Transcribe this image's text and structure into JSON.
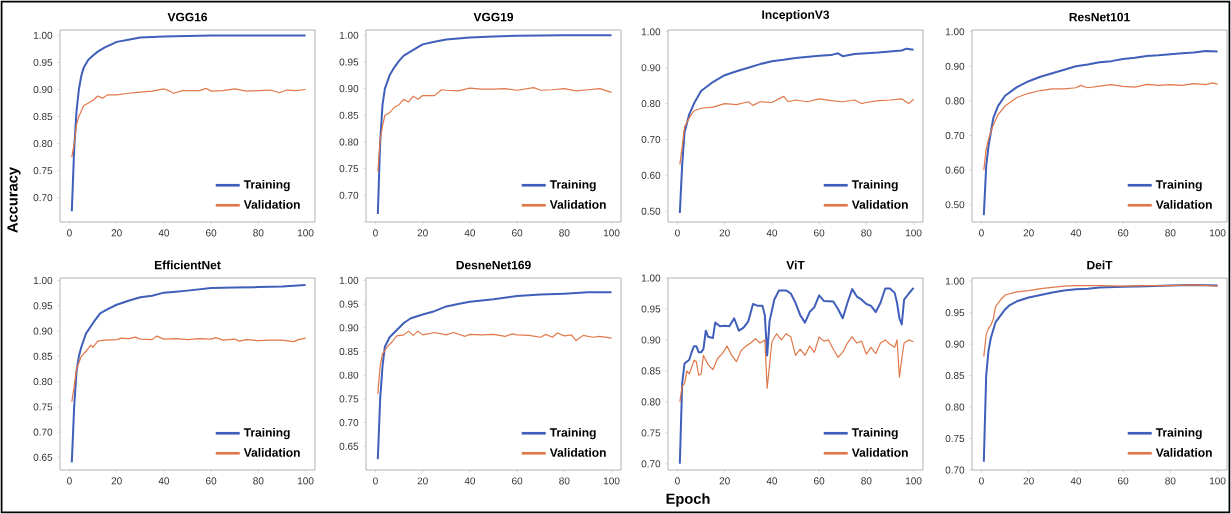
{
  "chart_data": [
    {
      "type": "line",
      "title": "VGG16",
      "ylabel": "Accuracy",
      "legend": "bottom right",
      "xlim": [
        -4,
        104
      ],
      "ylim": [
        0.655,
        1.01
      ],
      "xticks": [
        0,
        20,
        40,
        60,
        80,
        100
      ],
      "yticks": [
        {
          "value": 0.7,
          "label": "0.70"
        },
        {
          "value": 0.75,
          "label": "0.75"
        },
        {
          "value": 0.8,
          "label": "0.80"
        },
        {
          "value": 0.85,
          "label": "0.85"
        },
        {
          "value": 0.9,
          "label": "0.90"
        },
        {
          "value": 0.95,
          "label": "0.95"
        },
        {
          "value": 1.0,
          "label": "1.00"
        }
      ],
      "series": [
        {
          "name": "Training",
          "color": "#3f5fba",
          "x": [
            1,
            2,
            3,
            4,
            5,
            6,
            8,
            10,
            12,
            15,
            18,
            20,
            25,
            30,
            35,
            40,
            50,
            60,
            80,
            100
          ],
          "values": [
            0.675,
            0.79,
            0.86,
            0.9,
            0.925,
            0.94,
            0.955,
            0.963,
            0.97,
            0.978,
            0.984,
            0.988,
            0.992,
            0.996,
            0.997,
            0.998,
            0.999,
            1.0,
            1.0,
            1.0
          ]
        },
        {
          "name": "Validation",
          "color": "#e0784a",
          "x": [
            1,
            2,
            3,
            4,
            6,
            8,
            10,
            12,
            14,
            16,
            20,
            25,
            30,
            35,
            40,
            42,
            44,
            48,
            55,
            58,
            60,
            65,
            70,
            75,
            80,
            85,
            89,
            92,
            96,
            100
          ],
          "values": [
            0.775,
            0.8,
            0.835,
            0.85,
            0.87,
            0.875,
            0.88,
            0.888,
            0.884,
            0.89,
            0.89,
            0.893,
            0.895,
            0.897,
            0.901,
            0.898,
            0.893,
            0.898,
            0.898,
            0.902,
            0.897,
            0.898,
            0.901,
            0.897,
            0.898,
            0.899,
            0.894,
            0.899,
            0.898,
            0.9
          ]
        }
      ]
    },
    {
      "type": "line",
      "title": "VGG19",
      "legend": "bottom right",
      "xlim": [
        -4,
        104
      ],
      "ylim": [
        0.65,
        1.01
      ],
      "xticks": [
        0,
        20,
        40,
        60,
        80,
        100
      ],
      "yticks": [
        {
          "value": 0.65,
          "label": null
        },
        {
          "value": 0.7,
          "label": "0.70"
        },
        {
          "value": 0.75,
          "label": "0.75"
        },
        {
          "value": 0.8,
          "label": "0.80"
        },
        {
          "value": 0.85,
          "label": "0.85"
        },
        {
          "value": 0.9,
          "label": "0.90"
        },
        {
          "value": 0.95,
          "label": "0.95"
        },
        {
          "value": 1.0,
          "label": "1.00"
        }
      ],
      "series": [
        {
          "name": "Training",
          "color": "#3f5fba",
          "x": [
            1,
            2,
            3,
            4,
            6,
            8,
            10,
            12,
            15,
            18,
            20,
            25,
            30,
            40,
            50,
            60,
            80,
            100
          ],
          "values": [
            0.665,
            0.8,
            0.87,
            0.9,
            0.925,
            0.94,
            0.952,
            0.962,
            0.97,
            0.978,
            0.983,
            0.988,
            0.992,
            0.996,
            0.998,
            0.999,
            1.0,
            1.0
          ]
        },
        {
          "name": "Validation",
          "color": "#e0784a",
          "x": [
            1,
            2,
            3,
            4,
            6,
            8,
            10,
            12,
            14,
            16,
            18,
            20,
            25,
            28,
            30,
            35,
            40,
            45,
            50,
            55,
            60,
            67,
            70,
            75,
            80,
            85,
            90,
            95,
            100
          ],
          "values": [
            0.745,
            0.805,
            0.83,
            0.85,
            0.855,
            0.865,
            0.87,
            0.88,
            0.875,
            0.886,
            0.88,
            0.887,
            0.887,
            0.898,
            0.897,
            0.896,
            0.901,
            0.899,
            0.899,
            0.9,
            0.897,
            0.902,
            0.897,
            0.898,
            0.9,
            0.896,
            0.898,
            0.9,
            0.893
          ]
        }
      ]
    },
    {
      "type": "line",
      "title": "InceptionV3",
      "legend": "bottom right",
      "xlim": [
        -4,
        104
      ],
      "ylim": [
        0.47,
        1.005
      ],
      "xticks": [
        0,
        20,
        40,
        60,
        80,
        100
      ],
      "yticks": [
        {
          "value": 0.5,
          "label": "0.50"
        },
        {
          "value": 0.6,
          "label": "0.60"
        },
        {
          "value": 0.7,
          "label": "0.70"
        },
        {
          "value": 0.8,
          "label": "0.80"
        },
        {
          "value": 0.9,
          "label": "0.90"
        },
        {
          "value": 1.0,
          "label": "1.00"
        }
      ],
      "series": [
        {
          "name": "Training",
          "color": "#3f5fba",
          "x": [
            1,
            2,
            3,
            5,
            7,
            10,
            15,
            20,
            25,
            30,
            35,
            40,
            45,
            50,
            60,
            65,
            68,
            70,
            75,
            80,
            85,
            90,
            95,
            97,
            100
          ],
          "values": [
            0.495,
            0.63,
            0.72,
            0.77,
            0.8,
            0.835,
            0.86,
            0.879,
            0.89,
            0.9,
            0.91,
            0.918,
            0.922,
            0.927,
            0.933,
            0.935,
            0.94,
            0.932,
            0.938,
            0.94,
            0.942,
            0.945,
            0.948,
            0.953,
            0.95
          ]
        },
        {
          "name": "Validation",
          "color": "#e0784a",
          "x": [
            1,
            2,
            3,
            5,
            7,
            10,
            15,
            20,
            25,
            30,
            32,
            35,
            40,
            45,
            47,
            50,
            55,
            60,
            65,
            70,
            75,
            78,
            80,
            85,
            90,
            95,
            98,
            100
          ],
          "values": [
            0.63,
            0.68,
            0.735,
            0.76,
            0.78,
            0.787,
            0.79,
            0.8,
            0.797,
            0.805,
            0.795,
            0.805,
            0.803,
            0.82,
            0.805,
            0.81,
            0.805,
            0.813,
            0.808,
            0.805,
            0.81,
            0.8,
            0.803,
            0.808,
            0.81,
            0.813,
            0.8,
            0.812
          ]
        }
      ]
    },
    {
      "type": "line",
      "title": "ResNet101",
      "legend": "bottom right",
      "xlim": [
        -4,
        104
      ],
      "ylim": [
        0.45,
        1.005
      ],
      "xticks": [
        0,
        20,
        40,
        60,
        80,
        100
      ],
      "yticks": [
        {
          "value": 0.5,
          "label": "0.50"
        },
        {
          "value": 0.6,
          "label": "0.60"
        },
        {
          "value": 0.7,
          "label": "0.70"
        },
        {
          "value": 0.8,
          "label": "0.80"
        },
        {
          "value": 0.9,
          "label": "0.90"
        },
        {
          "value": 1.0,
          "label": "1.00"
        }
      ],
      "series": [
        {
          "name": "Training",
          "color": "#3f5fba",
          "x": [
            1,
            2,
            3,
            5,
            7,
            10,
            15,
            20,
            25,
            30,
            35,
            40,
            45,
            50,
            55,
            60,
            65,
            70,
            75,
            80,
            85,
            90,
            95,
            100
          ],
          "values": [
            0.47,
            0.61,
            0.67,
            0.75,
            0.785,
            0.815,
            0.84,
            0.857,
            0.87,
            0.88,
            0.89,
            0.9,
            0.905,
            0.912,
            0.915,
            0.921,
            0.925,
            0.93,
            0.932,
            0.935,
            0.938,
            0.94,
            0.944,
            0.943
          ]
        },
        {
          "name": "Validation",
          "color": "#e0784a",
          "x": [
            1,
            2,
            3,
            5,
            7,
            10,
            15,
            20,
            25,
            30,
            35,
            40,
            42,
            45,
            50,
            55,
            60,
            65,
            70,
            75,
            80,
            85,
            90,
            95,
            98,
            100
          ],
          "values": [
            0.6,
            0.66,
            0.69,
            0.73,
            0.76,
            0.785,
            0.81,
            0.822,
            0.83,
            0.835,
            0.835,
            0.838,
            0.845,
            0.838,
            0.843,
            0.847,
            0.842,
            0.84,
            0.848,
            0.845,
            0.847,
            0.845,
            0.85,
            0.847,
            0.852,
            0.848
          ]
        }
      ]
    },
    {
      "type": "line",
      "title": "EfficientNet",
      "legend": "bottom right",
      "xlim": [
        -4,
        104
      ],
      "ylim": [
        0.625,
        1.005
      ],
      "xticks": [
        0,
        20,
        40,
        60,
        80,
        100
      ],
      "yticks": [
        {
          "value": 0.65,
          "label": "0.65"
        },
        {
          "value": 0.7,
          "label": "0.70"
        },
        {
          "value": 0.75,
          "label": "0.75"
        },
        {
          "value": 0.8,
          "label": "0.80"
        },
        {
          "value": 0.85,
          "label": "0.85"
        },
        {
          "value": 0.9,
          "label": "0.90"
        },
        {
          "value": 0.95,
          "label": "0.95"
        },
        {
          "value": 1.0,
          "label": "1.00"
        }
      ],
      "series": [
        {
          "name": "Training",
          "color": "#3f5fba",
          "x": [
            1,
            2,
            3,
            4,
            5,
            7,
            10,
            13,
            16,
            20,
            25,
            30,
            35,
            40,
            45,
            50,
            60,
            70,
            80,
            90,
            100
          ],
          "values": [
            0.64,
            0.75,
            0.82,
            0.85,
            0.868,
            0.895,
            0.916,
            0.935,
            0.943,
            0.952,
            0.96,
            0.967,
            0.97,
            0.976,
            0.978,
            0.98,
            0.985,
            0.986,
            0.987,
            0.988,
            0.991
          ]
        },
        {
          "name": "Validation",
          "color": "#e0784a",
          "x": [
            1,
            2,
            3,
            5,
            7,
            9,
            10,
            12,
            15,
            20,
            22,
            25,
            28,
            30,
            35,
            37,
            40,
            45,
            50,
            55,
            60,
            62,
            65,
            70,
            72,
            75,
            80,
            85,
            90,
            95,
            97,
            100
          ],
          "values": [
            0.76,
            0.79,
            0.825,
            0.85,
            0.86,
            0.872,
            0.868,
            0.88,
            0.882,
            0.883,
            0.886,
            0.885,
            0.888,
            0.884,
            0.883,
            0.89,
            0.884,
            0.885,
            0.883,
            0.885,
            0.884,
            0.887,
            0.882,
            0.884,
            0.88,
            0.883,
            0.881,
            0.882,
            0.882,
            0.879,
            0.883,
            0.886
          ]
        }
      ]
    },
    {
      "type": "line",
      "title": "DesneNet169",
      "legend": "bottom right",
      "xlim": [
        -4,
        104
      ],
      "ylim": [
        0.6,
        1.005
      ],
      "xticks": [
        0,
        20,
        40,
        60,
        80,
        100
      ],
      "yticks": [
        {
          "value": 0.65,
          "label": "0.65"
        },
        {
          "value": 0.7,
          "label": "0.70"
        },
        {
          "value": 0.75,
          "label": "0.75"
        },
        {
          "value": 0.8,
          "label": "0.80"
        },
        {
          "value": 0.85,
          "label": "0.85"
        },
        {
          "value": 0.9,
          "label": "0.90"
        },
        {
          "value": 0.95,
          "label": "0.95"
        },
        {
          "value": 1.0,
          "label": "1.00"
        }
      ],
      "series": [
        {
          "name": "Training",
          "color": "#3f5fba",
          "x": [
            1,
            2,
            3,
            4,
            6,
            8,
            10,
            12,
            15,
            20,
            25,
            30,
            35,
            40,
            50,
            60,
            70,
            80,
            90,
            100
          ],
          "values": [
            0.623,
            0.75,
            0.82,
            0.86,
            0.88,
            0.89,
            0.9,
            0.91,
            0.92,
            0.928,
            0.935,
            0.945,
            0.95,
            0.955,
            0.96,
            0.967,
            0.97,
            0.972,
            0.975,
            0.975
          ]
        },
        {
          "name": "Validation",
          "color": "#e0784a",
          "x": [
            1,
            2,
            3,
            5,
            7,
            9,
            12,
            14,
            16,
            18,
            20,
            25,
            30,
            33,
            38,
            40,
            45,
            50,
            55,
            58,
            60,
            65,
            70,
            72,
            75,
            77,
            80,
            83,
            85,
            88,
            92,
            95,
            100
          ],
          "values": [
            0.76,
            0.82,
            0.845,
            0.86,
            0.87,
            0.883,
            0.885,
            0.893,
            0.884,
            0.893,
            0.885,
            0.89,
            0.885,
            0.89,
            0.882,
            0.886,
            0.885,
            0.886,
            0.882,
            0.887,
            0.885,
            0.884,
            0.88,
            0.886,
            0.88,
            0.889,
            0.883,
            0.885,
            0.873,
            0.884,
            0.88,
            0.882,
            0.878
          ]
        }
      ]
    },
    {
      "type": "line",
      "title": "ViT",
      "xlabel": "Epoch",
      "legend": "bottom right",
      "xlim": [
        -4,
        104
      ],
      "ylim": [
        0.69,
        1.0
      ],
      "xticks": [
        0,
        20,
        40,
        60,
        80,
        100
      ],
      "yticks": [
        {
          "value": 0.7,
          "label": "0.70"
        },
        {
          "value": 0.75,
          "label": "0.75"
        },
        {
          "value": 0.8,
          "label": "0.80"
        },
        {
          "value": 0.85,
          "label": "0.85"
        },
        {
          "value": 0.9,
          "label": "0.90"
        },
        {
          "value": 0.95,
          "label": "0.95"
        },
        {
          "value": 1.0,
          "label": "1.00"
        }
      ],
      "series": [
        {
          "name": "Training",
          "color": "#3f5fba",
          "x": [
            1,
            2,
            3,
            5,
            6,
            7,
            8,
            9,
            10,
            11,
            12,
            13,
            15,
            16,
            18,
            20,
            22,
            24,
            26,
            28,
            30,
            32,
            34,
            36,
            37,
            38,
            39,
            41,
            43,
            46,
            48,
            50,
            52,
            54,
            56,
            58,
            60,
            62,
            66,
            68,
            70,
            72,
            74,
            76,
            78,
            80,
            82,
            84,
            86,
            88,
            90,
            92,
            93,
            94,
            95,
            96,
            98,
            100
          ],
          "values": [
            0.7,
            0.83,
            0.862,
            0.868,
            0.88,
            0.89,
            0.89,
            0.88,
            0.88,
            0.885,
            0.915,
            0.905,
            0.903,
            0.928,
            0.922,
            0.923,
            0.922,
            0.935,
            0.915,
            0.92,
            0.93,
            0.958,
            0.955,
            0.955,
            0.94,
            0.875,
            0.93,
            0.965,
            0.98,
            0.98,
            0.975,
            0.96,
            0.94,
            0.928,
            0.945,
            0.953,
            0.972,
            0.963,
            0.962,
            0.95,
            0.935,
            0.96,
            0.982,
            0.97,
            0.965,
            0.958,
            0.955,
            0.945,
            0.96,
            0.983,
            0.983,
            0.976,
            0.96,
            0.935,
            0.925,
            0.965,
            0.975,
            0.984
          ]
        },
        {
          "name": "Validation",
          "color": "#e0784a",
          "x": [
            1,
            2,
            3,
            4,
            5,
            7,
            8,
            9,
            10,
            11,
            13,
            15,
            17,
            19,
            21,
            23,
            25,
            27,
            29,
            31,
            33,
            35,
            37,
            38,
            40,
            42,
            44,
            46,
            48,
            50,
            52,
            54,
            56,
            58,
            60,
            62,
            64,
            66,
            68,
            70,
            72,
            74,
            76,
            78,
            80,
            82,
            84,
            86,
            88,
            90,
            92,
            93,
            94,
            95,
            96,
            98,
            100
          ],
          "values": [
            0.8,
            0.825,
            0.83,
            0.85,
            0.845,
            0.867,
            0.865,
            0.843,
            0.845,
            0.875,
            0.86,
            0.852,
            0.87,
            0.878,
            0.89,
            0.875,
            0.865,
            0.883,
            0.89,
            0.895,
            0.902,
            0.895,
            0.9,
            0.822,
            0.897,
            0.91,
            0.9,
            0.91,
            0.905,
            0.875,
            0.885,
            0.875,
            0.89,
            0.88,
            0.905,
            0.898,
            0.9,
            0.885,
            0.872,
            0.88,
            0.895,
            0.905,
            0.895,
            0.898,
            0.877,
            0.888,
            0.878,
            0.895,
            0.9,
            0.893,
            0.888,
            0.9,
            0.84,
            0.87,
            0.895,
            0.9,
            0.897
          ]
        }
      ]
    },
    {
      "type": "line",
      "title": "DeiT",
      "legend": "bottom right",
      "xlim": [
        -4,
        104
      ],
      "ylim": [
        0.7,
        1.005
      ],
      "xticks": [
        0,
        20,
        40,
        60,
        80,
        100
      ],
      "yticks": [
        {
          "value": 0.7,
          "label": "0.70"
        },
        {
          "value": 0.75,
          "label": "0.75"
        },
        {
          "value": 0.8,
          "label": "0.80"
        },
        {
          "value": 0.85,
          "label": "0.85"
        },
        {
          "value": 0.9,
          "label": "0.90"
        },
        {
          "value": 0.95,
          "label": "0.95"
        },
        {
          "value": 1.0,
          "label": "1.00"
        }
      ],
      "series": [
        {
          "name": "Training",
          "color": "#3f5fba",
          "x": [
            1,
            2,
            3,
            4,
            6,
            8,
            10,
            12,
            15,
            20,
            25,
            30,
            35,
            40,
            45,
            50,
            60,
            70,
            80,
            90,
            100
          ],
          "values": [
            0.713,
            0.85,
            0.89,
            0.91,
            0.935,
            0.945,
            0.955,
            0.962,
            0.968,
            0.974,
            0.978,
            0.982,
            0.985,
            0.987,
            0.988,
            0.99,
            0.991,
            0.992,
            0.993,
            0.994,
            0.993
          ]
        },
        {
          "name": "Validation",
          "color": "#e0784a",
          "x": [
            1,
            2,
            3,
            4,
            5,
            6,
            8,
            10,
            15,
            20,
            25,
            30,
            35,
            40,
            50,
            60,
            70,
            80,
            90,
            100
          ],
          "values": [
            0.88,
            0.915,
            0.925,
            0.93,
            0.94,
            0.96,
            0.97,
            0.978,
            0.983,
            0.985,
            0.988,
            0.99,
            0.992,
            0.993,
            0.993,
            0.992,
            0.993,
            0.993,
            0.994,
            0.992
          ]
        }
      ]
    }
  ]
}
